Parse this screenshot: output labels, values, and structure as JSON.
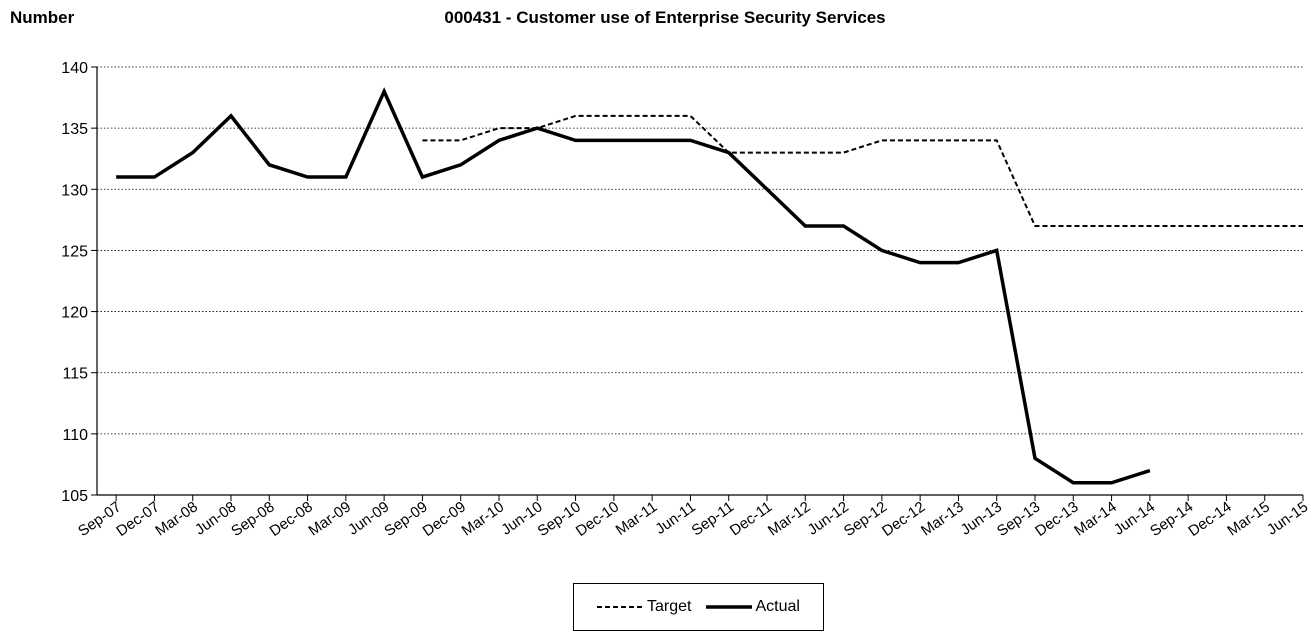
{
  "chart_data": {
    "type": "line",
    "title": "000431 - Customer use of Enterprise Security Services",
    "ylabel": "Number",
    "xlabel": "",
    "ylim": [
      105,
      140
    ],
    "yticks": [
      105,
      110,
      115,
      120,
      125,
      130,
      135,
      140
    ],
    "categories": [
      "Sep-07",
      "Dec-07",
      "Mar-08",
      "Jun-08",
      "Sep-08",
      "Dec-08",
      "Mar-09",
      "Jun-09",
      "Sep-09",
      "Dec-09",
      "Mar-10",
      "Jun-10",
      "Sep-10",
      "Dec-10",
      "Mar-11",
      "Jun-11",
      "Sep-11",
      "Dec-11",
      "Mar-12",
      "Jun-12",
      "Sep-12",
      "Dec-12",
      "Mar-13",
      "Jun-13",
      "Sep-13",
      "Dec-13",
      "Mar-14",
      "Jun-14",
      "Sep-14",
      "Dec-14",
      "Mar-15",
      "Jun-15"
    ],
    "grid": "horizontal-dotted",
    "legend_position": "bottom-center",
    "series": [
      {
        "name": "Target",
        "style": "dashed",
        "color": "#000000",
        "values": [
          null,
          null,
          null,
          null,
          null,
          null,
          null,
          null,
          134,
          134,
          135,
          135,
          136,
          136,
          136,
          136,
          133,
          133,
          133,
          133,
          134,
          134,
          134,
          134,
          127,
          127,
          127,
          127,
          127,
          127,
          127,
          127
        ]
      },
      {
        "name": "Actual",
        "style": "solid",
        "color": "#000000",
        "values": [
          131,
          131,
          133,
          136,
          132,
          131,
          131,
          138,
          131,
          132,
          134,
          135,
          134,
          134,
          134,
          134,
          133,
          130,
          127,
          127,
          125,
          124,
          124,
          125,
          108,
          106,
          106,
          107,
          null,
          null,
          null,
          null
        ]
      }
    ]
  }
}
